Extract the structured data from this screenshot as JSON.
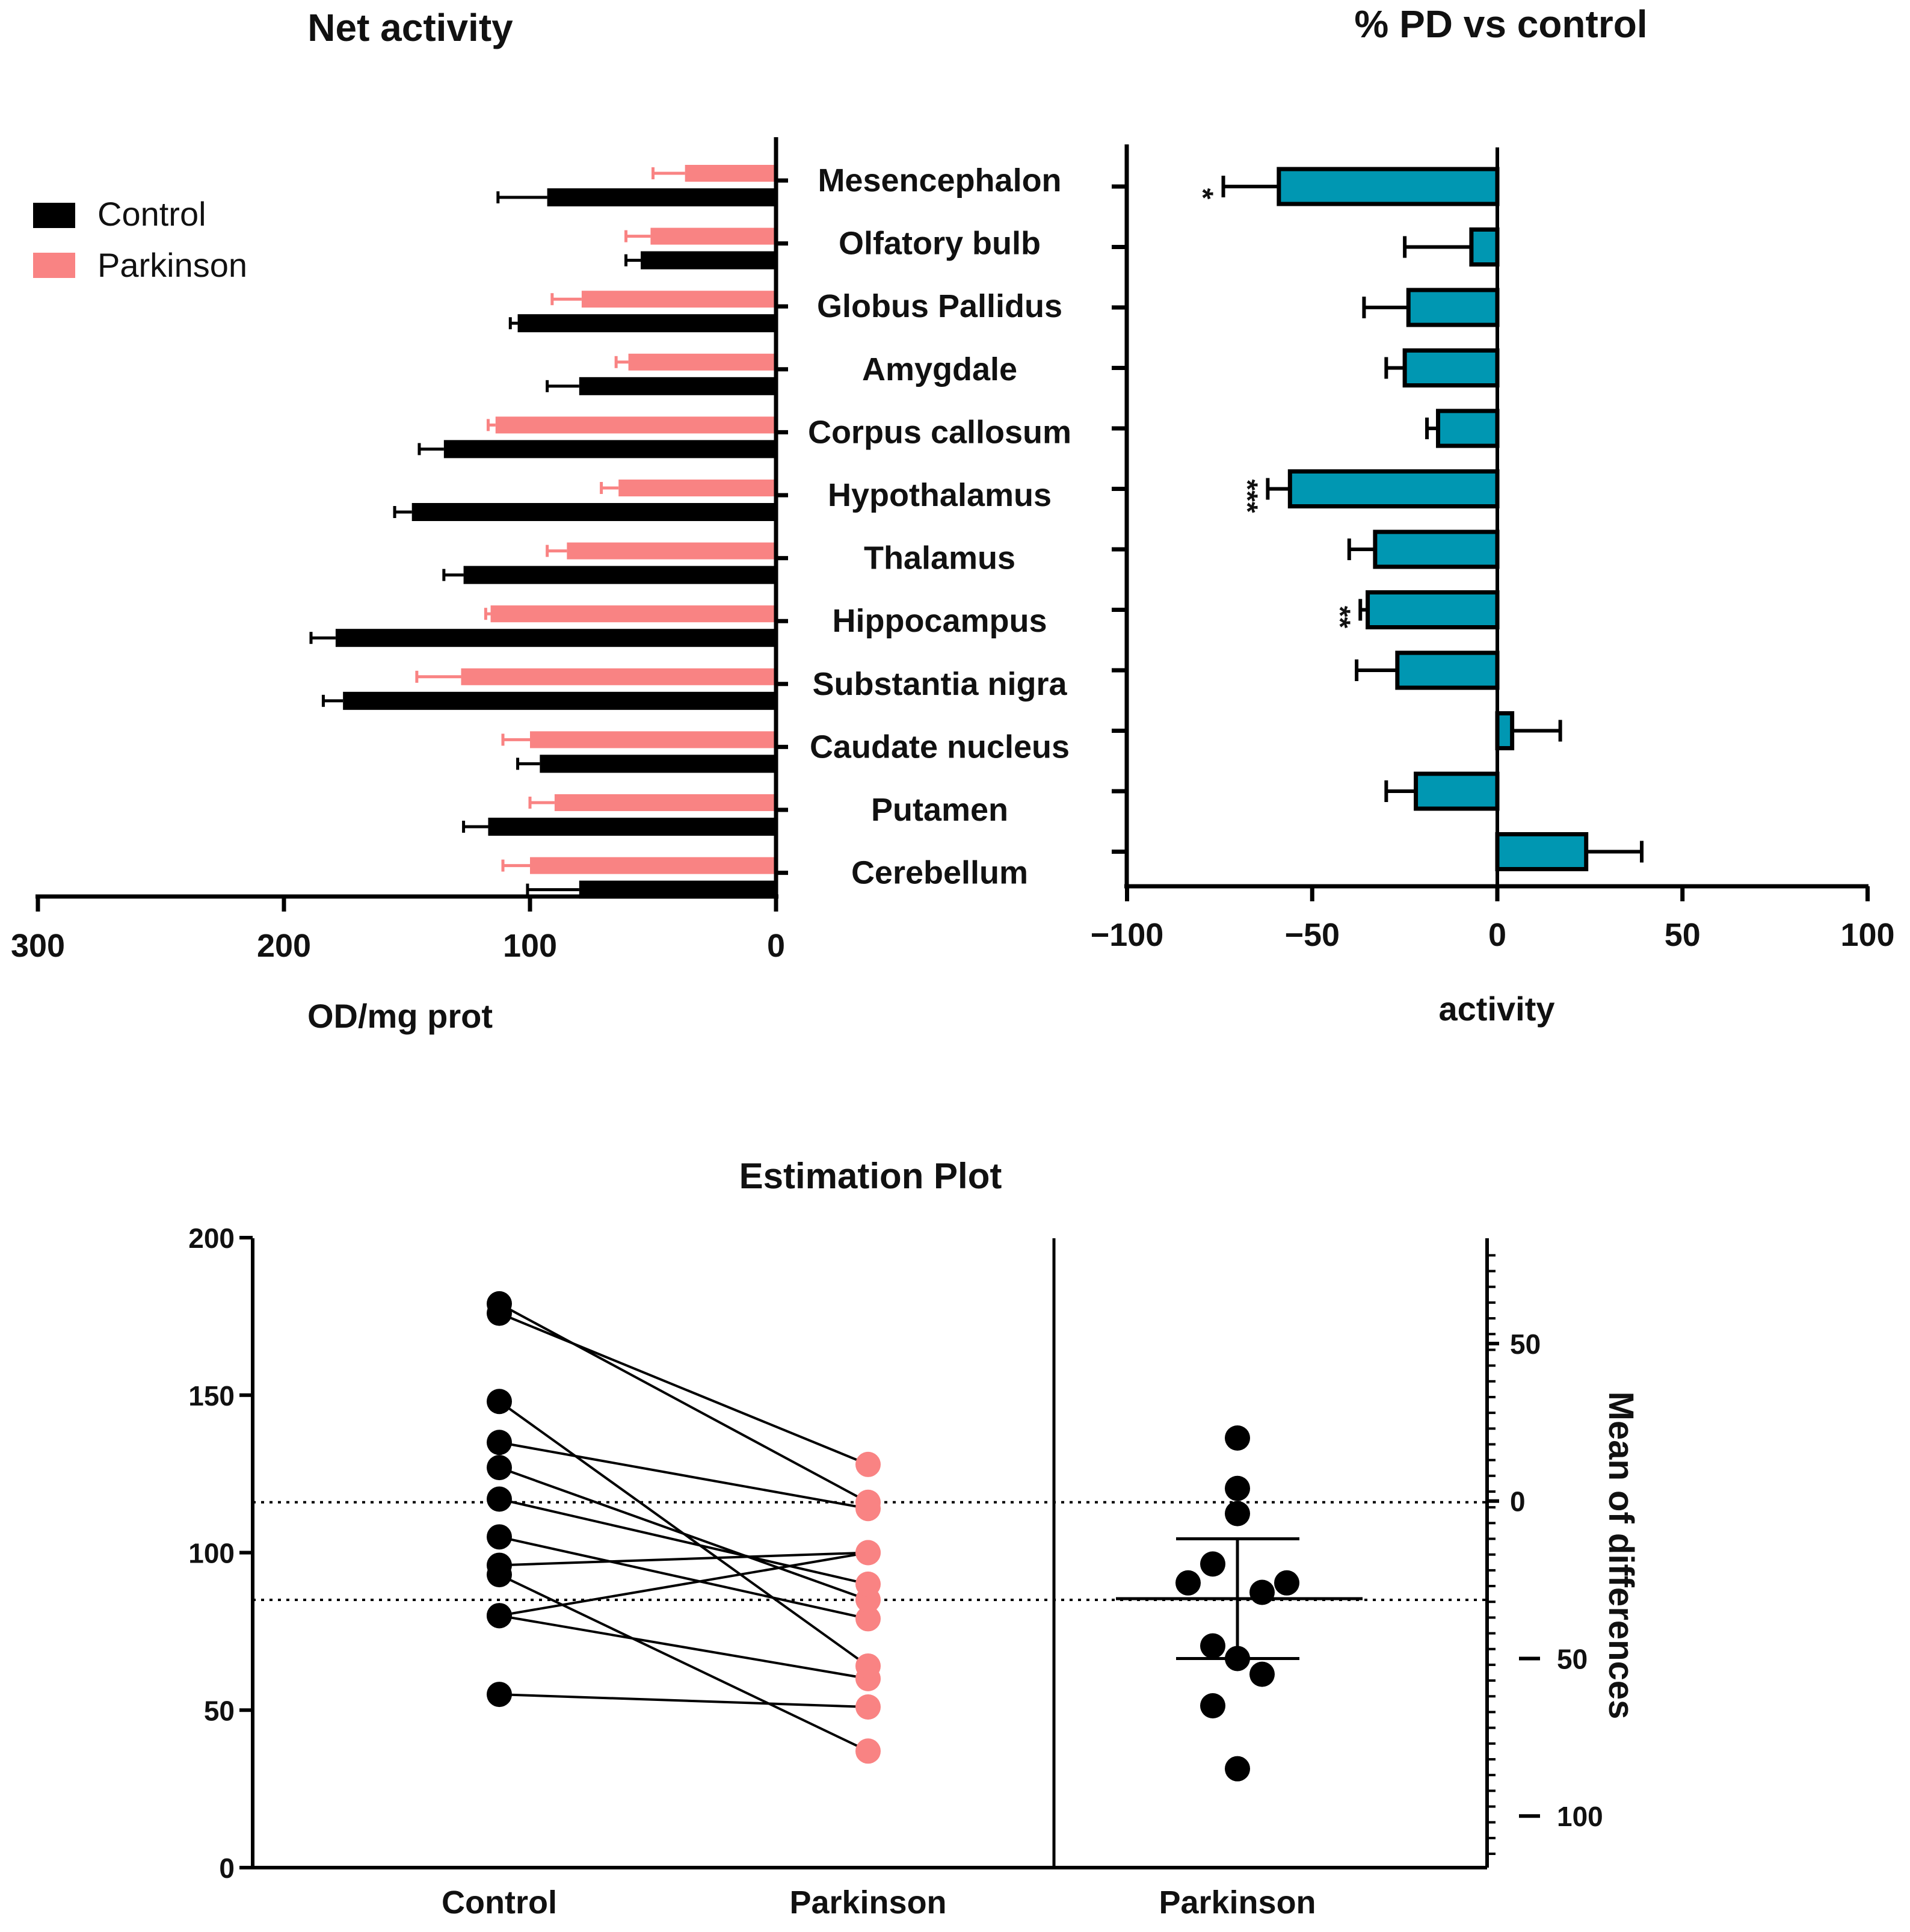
{
  "colors": {
    "control": "#000000",
    "parkinson": "#f98383",
    "percent_bar": "#0097b2",
    "axis": "#000000"
  },
  "chart_data": [
    {
      "id": "net-activity",
      "type": "bar",
      "orientation": "horizontal",
      "title": "Net activity",
      "xlabel": "OD/mg prot",
      "ylabel": "",
      "xlim": [
        300,
        0
      ],
      "xticks": [
        "300",
        "200",
        "100",
        "0"
      ],
      "categories": [
        "Mesencephalon",
        "Olfatory bulb",
        "Globus Pallidus",
        "Amygdale",
        "Corpus callosum",
        "Hypothalamus",
        "Thalamus",
        "Hippocampus",
        "Substantia nigra",
        "Caudate nucleus",
        "Putamen",
        "Cerebellum"
      ],
      "legend": {
        "position": "top-left",
        "entries": [
          "Control",
          "Parkinson"
        ]
      },
      "series": [
        {
          "name": "Control",
          "color": "#000000",
          "values": [
            93,
            55,
            105,
            80,
            135,
            148,
            127,
            179,
            176,
            96,
            117,
            80
          ],
          "errors": [
            20,
            6,
            3,
            13,
            10,
            7,
            8,
            10,
            8,
            9,
            10,
            21
          ]
        },
        {
          "name": "Parkinson",
          "color": "#f98383",
          "values": [
            37,
            51,
            79,
            60,
            114,
            64,
            85,
            116,
            128,
            100,
            90,
            100
          ],
          "errors": [
            13,
            10,
            12,
            5,
            3,
            7,
            8,
            2,
            18,
            11,
            10,
            11
          ]
        }
      ]
    },
    {
      "id": "percent-pd",
      "type": "bar",
      "orientation": "horizontal",
      "title": "% PD vs control",
      "xlabel": "activity",
      "ylabel": "",
      "xlim": [
        -100,
        100
      ],
      "xticks": [
        "−100",
        "−50",
        "0",
        "50",
        "100"
      ],
      "categories": [
        "Mesencephalon",
        "Olfatory bulb",
        "Globus Pallidus",
        "Amygdale",
        "Corpus callosum",
        "Hypothalamus",
        "Thalamus",
        "Hippocampus",
        "Substantia nigra",
        "Caudate nucleus",
        "Putamen",
        "Cerebellum"
      ],
      "values": [
        -59,
        -7,
        -24,
        -25,
        -16,
        -56,
        -33,
        -35,
        -27,
        4,
        -22,
        24
      ],
      "errors": [
        15,
        18,
        12,
        5,
        3,
        6,
        7,
        2,
        11,
        13,
        8,
        15
      ],
      "annotations": [
        "*",
        "",
        "",
        "",
        "",
        "***",
        "",
        "**",
        "",
        "",
        "",
        ""
      ]
    },
    {
      "id": "estimation",
      "type": "scatter",
      "title": "Estimation Plot",
      "xlabel": "",
      "ylabel": "",
      "x_categories": [
        "Control",
        "Parkinson"
      ],
      "diff_category": "Parkinson",
      "ylim": [
        0,
        200
      ],
      "yticks": [
        "0",
        "50",
        "100",
        "150",
        "200"
      ],
      "right_ylabel": "Mean of differences",
      "right_ylim": [
        -117,
        80
      ],
      "right_yticks": [
        "50",
        "0",
        "50",
        "100"
      ],
      "right_ytick_values": [
        50,
        0,
        -50,
        -100
      ],
      "control_mean": 116,
      "parkinson_mean": 85,
      "pairs": [
        [
          93,
          37
        ],
        [
          55,
          51
        ],
        [
          105,
          79
        ],
        [
          80,
          60
        ],
        [
          135,
          114
        ],
        [
          148,
          64
        ],
        [
          127,
          85
        ],
        [
          179,
          116
        ],
        [
          176,
          128
        ],
        [
          96,
          100
        ],
        [
          117,
          90
        ],
        [
          80,
          100
        ]
      ],
      "differences": [
        20,
        4,
        -4,
        -26,
        -20,
        -29,
        -26,
        -46,
        -55,
        -65,
        -50,
        -85
      ],
      "differences_x": [
        0,
        0,
        0,
        -1,
        -0.5,
        0.5,
        1,
        -0.5,
        0.5,
        -0.5,
        0,
        0
      ],
      "mean_difference": -31,
      "ci": [
        -50,
        -12
      ]
    }
  ]
}
